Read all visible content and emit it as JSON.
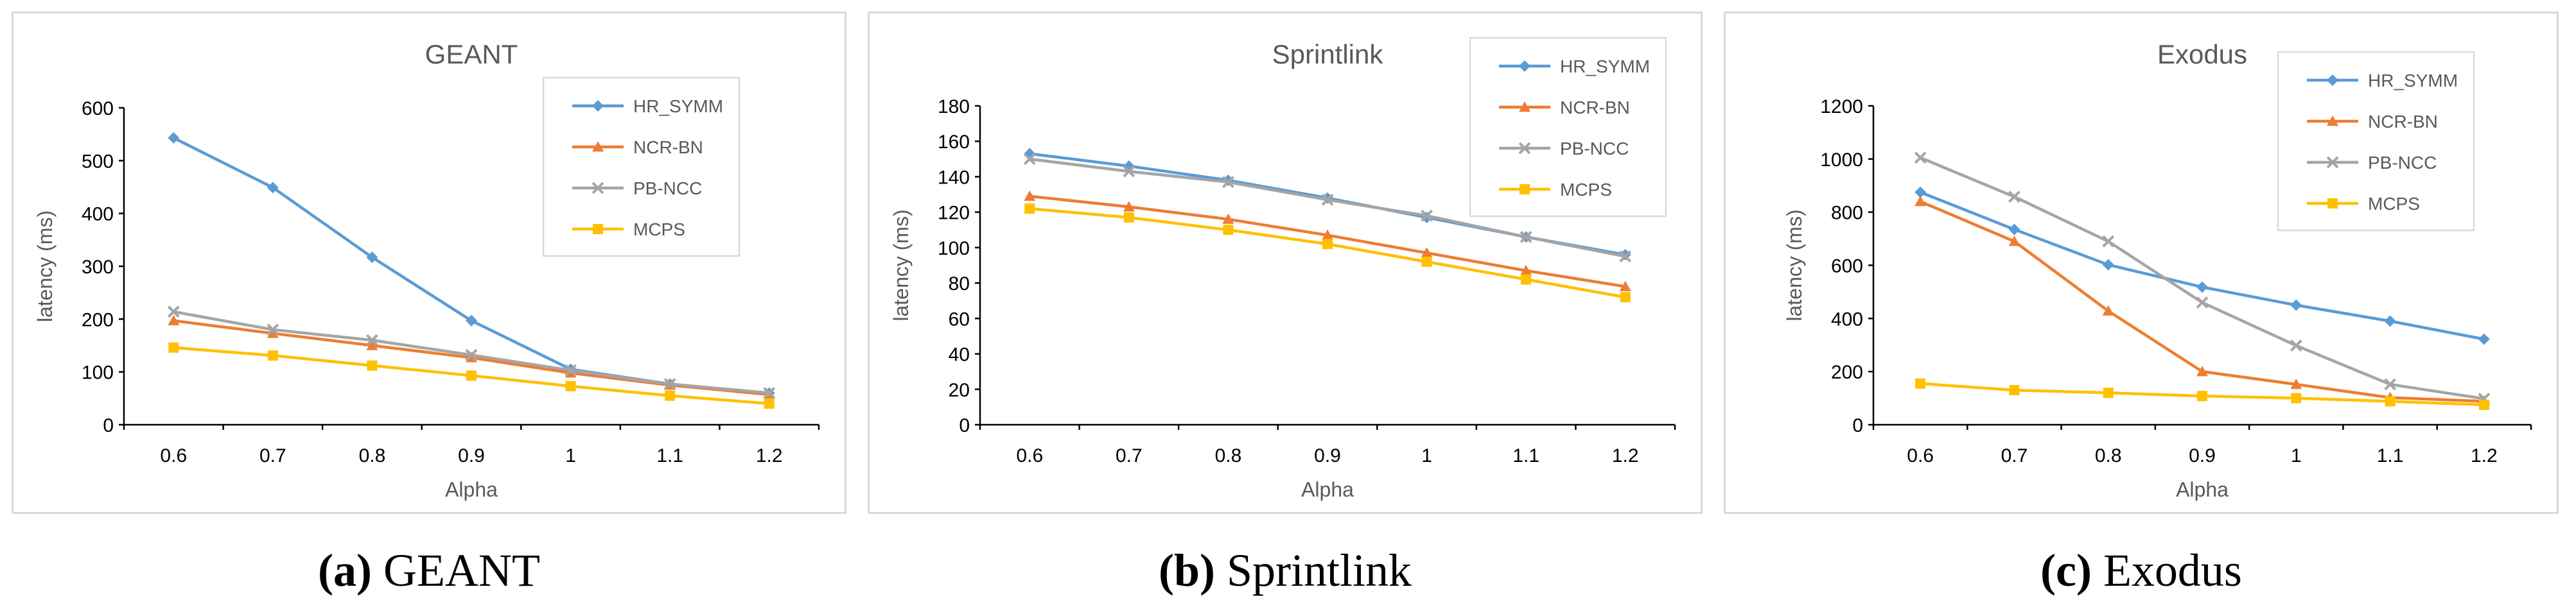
{
  "chart_data": [
    {
      "type": "line",
      "title": "GEANT",
      "xlabel": "Alpha",
      "ylabel": "latency (ms)",
      "categories": [
        "0.6",
        "0.7",
        "0.8",
        "0.9",
        "1",
        "1.1",
        "1.2"
      ],
      "ylim": [
        0,
        600
      ],
      "yticks": [
        0,
        100,
        200,
        300,
        400,
        500,
        600
      ],
      "legend_position": "top-right",
      "series": [
        {
          "name": "HR_SYMM",
          "color": "#5b9bd5",
          "marker": "diamond",
          "values": [
            543,
            449,
            317,
            197,
            105,
            77,
            60
          ]
        },
        {
          "name": "NCR-BN",
          "color": "#ed7d31",
          "marker": "triangle",
          "values": [
            197,
            173,
            150,
            127,
            98,
            75,
            57
          ]
        },
        {
          "name": "PB-NCC",
          "color": "#a5a5a5",
          "marker": "x",
          "values": [
            214,
            180,
            160,
            132,
            103,
            77,
            60
          ]
        },
        {
          "name": "MCPS",
          "color": "#ffc000",
          "marker": "square",
          "values": [
            146,
            131,
            112,
            93,
            73,
            55,
            40
          ]
        }
      ]
    },
    {
      "type": "line",
      "title": "Sprintlink",
      "xlabel": "Alpha",
      "ylabel": "latency (ms)",
      "categories": [
        "0.6",
        "0.7",
        "0.8",
        "0.9",
        "1",
        "1.1",
        "1.2"
      ],
      "ylim": [
        0,
        180
      ],
      "yticks": [
        0,
        20,
        40,
        60,
        80,
        100,
        120,
        140,
        160,
        180
      ],
      "legend_position": "top-right",
      "series": [
        {
          "name": "HR_SYMM",
          "color": "#5b9bd5",
          "marker": "diamond",
          "values": [
            153,
            146,
            138,
            128,
            117,
            106,
            96
          ]
        },
        {
          "name": "NCR-BN",
          "color": "#ed7d31",
          "marker": "triangle",
          "values": [
            129,
            123,
            116,
            107,
            97,
            87,
            78
          ]
        },
        {
          "name": "PB-NCC",
          "color": "#a5a5a5",
          "marker": "x",
          "values": [
            150,
            143,
            137,
            127,
            118,
            106,
            95
          ]
        },
        {
          "name": "MCPS",
          "color": "#ffc000",
          "marker": "square",
          "values": [
            122,
            117,
            110,
            102,
            92,
            82,
            72
          ]
        }
      ]
    },
    {
      "type": "line",
      "title": "Exodus",
      "xlabel": "Alpha",
      "ylabel": "latency (ms)",
      "categories": [
        "0.6",
        "0.7",
        "0.8",
        "0.9",
        "1",
        "1.1",
        "1.2"
      ],
      "ylim": [
        0,
        1200
      ],
      "yticks": [
        0,
        200,
        400,
        600,
        800,
        1000,
        1200
      ],
      "legend_position": "top-right",
      "series": [
        {
          "name": "HR_SYMM",
          "color": "#5b9bd5",
          "marker": "diamond",
          "values": [
            875,
            735,
            602,
            518,
            450,
            390,
            322
          ]
        },
        {
          "name": "NCR-BN",
          "color": "#ed7d31",
          "marker": "triangle",
          "values": [
            840,
            690,
            428,
            200,
            152,
            102,
            88
          ]
        },
        {
          "name": "PB-NCC",
          "color": "#a5a5a5",
          "marker": "x",
          "values": [
            1005,
            858,
            690,
            460,
            298,
            152,
            98
          ]
        },
        {
          "name": "MCPS",
          "color": "#ffc000",
          "marker": "square",
          "values": [
            155,
            130,
            120,
            108,
            100,
            88,
            75
          ]
        }
      ]
    }
  ],
  "captions": [
    {
      "label": "(a)",
      "text": "GEANT"
    },
    {
      "label": "(b)",
      "text": "Sprintlink"
    },
    {
      "label": "(c)",
      "text": "Exodus"
    }
  ]
}
